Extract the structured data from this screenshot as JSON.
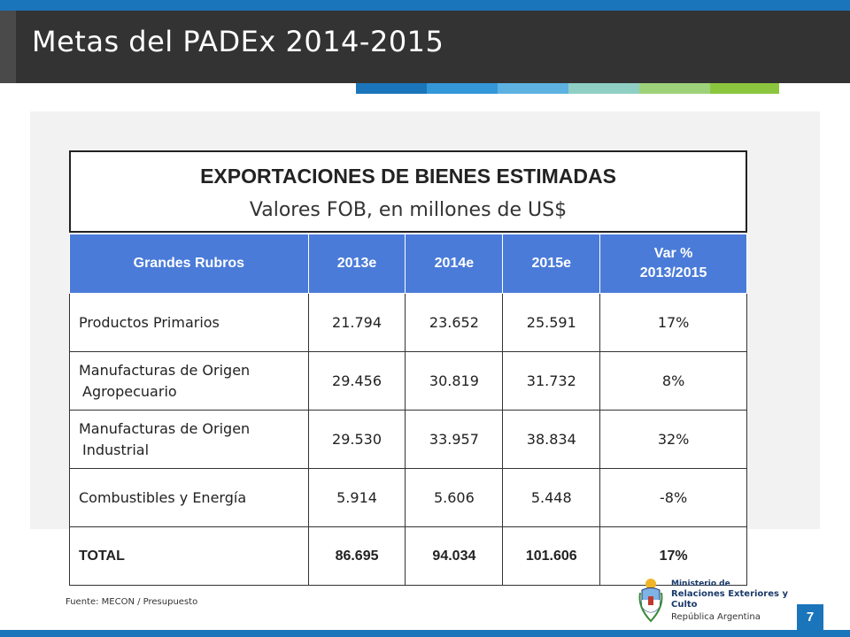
{
  "slide": {
    "title": "Metas del PADEx 2014-2015",
    "page_number": "7"
  },
  "accent_colors": [
    "#1b75bb",
    "#3498d8",
    "#5db2e2",
    "#8fcfc4",
    "#9ed27a",
    "#8cc63f"
  ],
  "table_title": {
    "main": "EXPORTACIONES DE BIENES ESTIMADAS",
    "sub": "Valores FOB, en millones de US$"
  },
  "table": {
    "headers": [
      "Grandes Rubros",
      "2013e",
      "2014e",
      "2015e",
      "Var %",
      "2013/2015"
    ],
    "rows": [
      {
        "rubro": [
          "Productos Primarios"
        ],
        "v2013": "21.794",
        "v2014": "23.652",
        "v2015": "25.591",
        "var": "17%"
      },
      {
        "rubro": [
          "Manufacturas de Origen",
          "Agropecuario"
        ],
        "v2013": "29.456",
        "v2014": "30.819",
        "v2015": "31.732",
        "var": "8%"
      },
      {
        "rubro": [
          "Manufacturas de Origen",
          "Industrial"
        ],
        "v2013": "29.530",
        "v2014": "33.957",
        "v2015": "38.834",
        "var": "32%"
      },
      {
        "rubro": [
          "Combustibles y Energía"
        ],
        "v2013": "5.914",
        "v2014": "5.606",
        "v2015": "5.448",
        "var": "-8%"
      },
      {
        "rubro": [
          "TOTAL"
        ],
        "v2013": "86.695",
        "v2014": "94.034",
        "v2015": "101.606",
        "var": "17%"
      }
    ]
  },
  "source": "Fuente: MECON / Presupuesto",
  "logo": {
    "line1": "Ministerio de",
    "line2": "Relaciones Exteriores y Culto",
    "line3": "República Argentina"
  }
}
